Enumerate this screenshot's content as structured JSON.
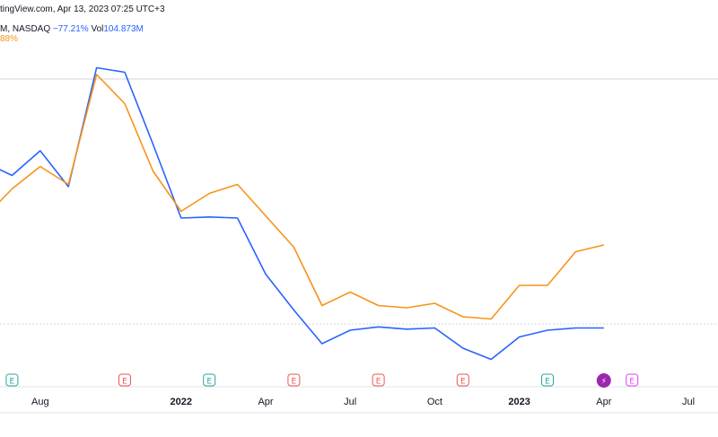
{
  "header": {
    "source_text": "tingView.com, Apr 13, 2023 07:25 UTC+3",
    "symbol_text": "M, NASDAQ",
    "change_text": "−77.21%",
    "vol_label": "Vol",
    "vol_value": "104.873M",
    "second_change_text": "88%"
  },
  "colors": {
    "blue_series": "#2962ff",
    "orange_series": "#f7931a",
    "earnings_past_green": "#26a69a",
    "earnings_past_red": "#ef5350",
    "upcoming_purple": "#e040fb"
  },
  "chart_data": {
    "type": "line",
    "x": [
      "2021-06",
      "2021-07",
      "2021-08",
      "2021-09",
      "2021-10",
      "2021-11",
      "2021-12",
      "2022-01",
      "2022-02",
      "2022-03",
      "2022-04",
      "2022-05",
      "2022-06",
      "2022-07",
      "2022-08",
      "2022-09",
      "2022-10",
      "2022-11",
      "2022-12",
      "2023-01",
      "2023-02",
      "2023-03",
      "2023-04"
    ],
    "xlim": [
      "2021-06",
      "2023-07"
    ],
    "series": [
      {
        "color": "#2962ff",
        "values": [
          -32,
          -38,
          -27,
          -43,
          10,
          8,
          -24,
          -57,
          -56.5,
          -57,
          -82,
          -98,
          -113,
          -107,
          -105.5,
          -106.5,
          -106,
          -115,
          -120,
          -110,
          -107,
          -106,
          -106
        ]
      },
      {
        "color": "#f7931a",
        "values": [
          -57,
          -44,
          -34,
          -42,
          7,
          -6,
          -36,
          -54,
          -46,
          -42,
          -56,
          -70,
          -96,
          -90,
          -96,
          -97,
          -95,
          -101,
          -102,
          -87,
          -87,
          -72,
          -69
        ]
      }
    ],
    "ylim": [
      -135,
      25
    ],
    "grid": true,
    "x_ticks": [
      {
        "date": "2021-08",
        "label": "Aug",
        "bold": false
      },
      {
        "date": "2022-01",
        "label": "2022",
        "bold": true
      },
      {
        "date": "2022-04",
        "label": "Apr",
        "bold": false
      },
      {
        "date": "2022-07",
        "label": "Jul",
        "bold": false
      },
      {
        "date": "2022-10",
        "label": "Oct",
        "bold": false
      },
      {
        "date": "2023-01",
        "label": "2023",
        "bold": true
      },
      {
        "date": "2023-04",
        "label": "Apr",
        "bold": false
      },
      {
        "date": "2023-07",
        "label": "Jul",
        "bold": false
      }
    ],
    "markers": [
      {
        "date": "2021-07",
        "label": "E",
        "kind": "green"
      },
      {
        "date": "2021-11",
        "label": "E",
        "kind": "red"
      },
      {
        "date": "2022-02",
        "label": "E",
        "kind": "green"
      },
      {
        "date": "2022-05",
        "label": "E",
        "kind": "red"
      },
      {
        "date": "2022-08",
        "label": "E",
        "kind": "red"
      },
      {
        "date": "2022-11",
        "label": "E",
        "kind": "red"
      },
      {
        "date": "2023-02",
        "label": "E",
        "kind": "green"
      },
      {
        "date": "2023-04",
        "label": "⚡",
        "kind": "split"
      },
      {
        "date": "2023-05",
        "label": "E",
        "kind": "upcoming"
      }
    ]
  }
}
